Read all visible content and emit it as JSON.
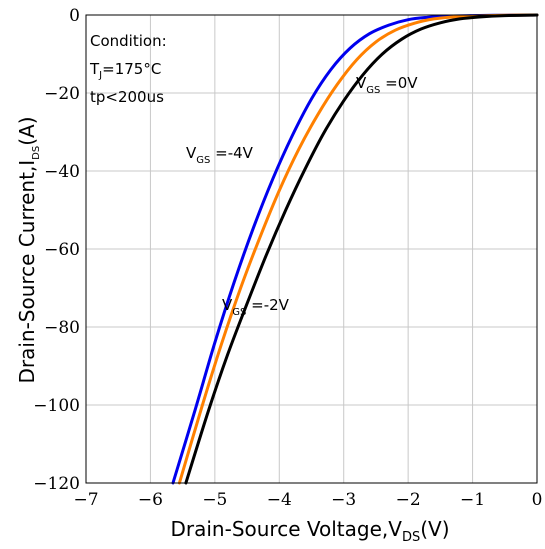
{
  "chart_data": {
    "type": "line",
    "xlabel": {
      "main": "Drain-Source Voltage,V",
      "sub": "DS",
      "unit": "(V)"
    },
    "ylabel": {
      "main": "Drain-Source Current,I",
      "sub": "DS",
      "unit": "(A)"
    },
    "xlim": [
      -7,
      0
    ],
    "ylim": [
      -120,
      0
    ],
    "x_ticks": [
      -7,
      -6,
      -5,
      -4,
      -3,
      -2,
      -1,
      0
    ],
    "y_ticks": [
      0,
      -20,
      -40,
      -60,
      -80,
      -100,
      -120
    ],
    "x_tick_labels": [
      "−7",
      "−6",
      "−5",
      "−4",
      "−3",
      "−2",
      "−1",
      "0"
    ],
    "y_tick_labels": [
      "0",
      "−20",
      "−40",
      "−60",
      "−80",
      "−100",
      "−120"
    ],
    "grid": true,
    "legend": "none",
    "conditions": {
      "title": "Condition:",
      "tj": {
        "main": "T",
        "sub": "J",
        "rest": "=175°C"
      },
      "tp": "tp<200us"
    },
    "series": [
      {
        "name": "VGS=-4V",
        "color": "#0000ee",
        "x": [
          -5.65,
          -5.3,
          -5.0,
          -4.7,
          -4.4,
          -4.1,
          -3.8,
          -3.5,
          -3.2,
          -2.9,
          -2.6,
          -2.3,
          -2.0,
          -1.7,
          -1.4,
          -1.0,
          -0.5,
          0.0
        ],
        "y": [
          -120,
          -100.9,
          -84.0,
          -68.5,
          -54.5,
          -42.0,
          -31.0,
          -21.5,
          -14.0,
          -8.5,
          -4.8,
          -2.6,
          -1.2,
          -0.6,
          -0.3,
          -0.15,
          -0.05,
          0.0
        ]
      },
      {
        "name": "VGS=-2V",
        "color": "#ff8000",
        "x": [
          -5.55,
          -5.2,
          -4.9,
          -4.6,
          -4.3,
          -4.0,
          -3.7,
          -3.4,
          -3.1,
          -2.8,
          -2.5,
          -2.2,
          -1.9,
          -1.6,
          -1.3,
          -1.0,
          -0.5,
          0.0
        ],
        "y": [
          -120,
          -100.4,
          -84.5,
          -70.0,
          -57.0,
          -45.0,
          -34.5,
          -25.5,
          -17.8,
          -11.5,
          -6.9,
          -3.9,
          -2.1,
          -1.0,
          -0.5,
          -0.25,
          -0.08,
          0.0
        ]
      },
      {
        "name": "VGS=0V",
        "color": "#000000",
        "x": [
          -5.45,
          -5.1,
          -4.8,
          -4.5,
          -4.2,
          -3.9,
          -3.6,
          -3.3,
          -3.0,
          -2.7,
          -2.4,
          -2.1,
          -1.8,
          -1.5,
          -1.2,
          -0.9,
          -0.5,
          0.0
        ],
        "y": [
          -120,
          -101.5,
          -87.0,
          -74.0,
          -61.5,
          -50.0,
          -39.5,
          -30.0,
          -22.0,
          -15.3,
          -10.0,
          -6.2,
          -3.6,
          -2.0,
          -1.0,
          -0.5,
          -0.15,
          0.0
        ]
      }
    ],
    "curve_labels": [
      {
        "series": "VGS=-4V",
        "main": "V",
        "sub": "GS",
        "rest": " =-4V"
      },
      {
        "series": "VGS=-2V",
        "main": "V",
        "sub": "GS",
        "rest": " =-2V"
      },
      {
        "series": "VGS=0V",
        "main": "V",
        "sub": "GS",
        "rest": " =0V"
      }
    ]
  }
}
